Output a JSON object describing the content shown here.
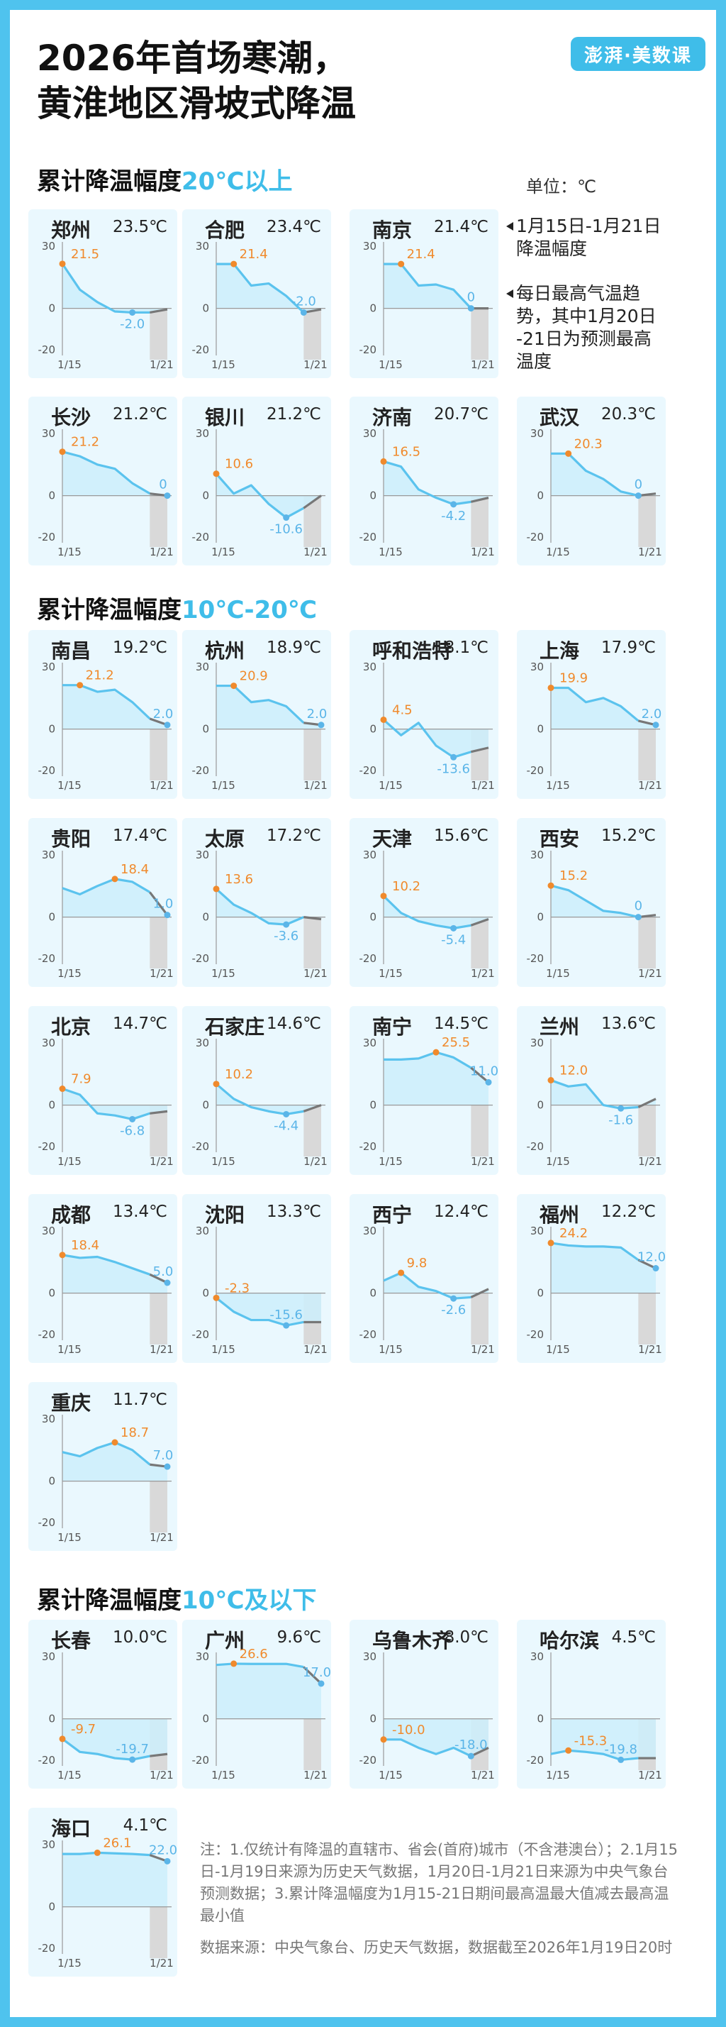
{
  "title_line1": "2026年首场寒潮，",
  "title_line2": "黄淮地区滑坡式降温",
  "logo": "澎湃·美数课",
  "unit": "单位：℃",
  "legend": {
    "range": [
      "1月15日-1月21日",
      "降温幅度"
    ],
    "trend": [
      "每日最高气温趋",
      "势，其中1月20日",
      "-21日为预测最高",
      "温度"
    ]
  },
  "sections": [
    {
      "prefix": "累计降温幅度",
      "highlight": "20℃以上"
    },
    {
      "prefix": "累计降温幅度",
      "highlight": "10℃-20℃"
    },
    {
      "prefix": "累计降温幅度",
      "highlight": "10℃及以下"
    }
  ],
  "axis": {
    "ticks": [
      "30",
      "0",
      "-20"
    ],
    "x_start": "1/15",
    "x_end": "1/21",
    "ylim": [
      -20,
      30
    ]
  },
  "colors": {
    "line": "#5bc3ee",
    "forecast": "#777777",
    "max": "#f08a2c",
    "min": "#5bb5e8",
    "area": "#cdeefb",
    "shade": "#d9d9d9"
  },
  "chart_data": {
    "type": "line",
    "x": [
      "1/15",
      "1/16",
      "1/17",
      "1/18",
      "1/19",
      "1/20",
      "1/21"
    ],
    "description_note": "每日最高气温趋势，1月20日-21日为预测",
    "cities": [
      {
        "name": "郑州",
        "drop": "23.5℃",
        "max": 21.5,
        "min": -2.0,
        "max_label": "21.5",
        "min_label": "-2.0",
        "values": [
          21.5,
          9,
          3,
          -1.5,
          -2.0,
          -2.0,
          -0.5
        ],
        "max_i": 0,
        "min_i": 4
      },
      {
        "name": "合肥",
        "drop": "23.4℃",
        "max": 21.4,
        "min": -2.0,
        "max_label": "21.4",
        "min_label": "-2.0",
        "values": [
          21.4,
          21.4,
          11,
          12,
          6,
          -2.0,
          -0.5
        ],
        "max_i": 1,
        "min_i": 5
      },
      {
        "name": "南京",
        "drop": "21.4℃",
        "max": 21.4,
        "min": 0,
        "max_label": "21.4",
        "min_label": "0",
        "values": [
          21.4,
          21.4,
          11,
          11.5,
          9,
          0,
          0
        ],
        "max_i": 1,
        "min_i": 5
      },
      {
        "name": "长沙",
        "drop": "21.2℃",
        "max": 21.2,
        "min": 0,
        "max_label": "21.2",
        "min_label": "0",
        "values": [
          21.2,
          19,
          15,
          13,
          6,
          1,
          0
        ],
        "max_i": 0,
        "min_i": 6
      },
      {
        "name": "银川",
        "drop": "21.2℃",
        "max": 10.6,
        "min": -10.6,
        "max_label": "10.6",
        "min_label": "-10.6",
        "values": [
          10.6,
          1,
          5,
          -4,
          -10.6,
          -6,
          0
        ],
        "max_i": 0,
        "min_i": 4
      },
      {
        "name": "济南",
        "drop": "20.7℃",
        "max": 16.5,
        "min": -4.2,
        "max_label": "16.5",
        "min_label": "-4.2",
        "values": [
          16.5,
          14,
          3,
          -1,
          -4.2,
          -3,
          -1
        ],
        "max_i": 0,
        "min_i": 4
      },
      {
        "name": "武汉",
        "drop": "20.3℃",
        "max": 20.3,
        "min": 0,
        "max_label": "20.3",
        "min_label": "0",
        "values": [
          20.3,
          20.3,
          12,
          8,
          2,
          0,
          1
        ],
        "max_i": 1,
        "min_i": 5
      },
      {
        "name": "南昌",
        "drop": "19.2℃",
        "max": 21.2,
        "min": 2.0,
        "max_label": "21.2",
        "min_label": "2.0",
        "values": [
          21.2,
          21.2,
          18,
          19,
          13,
          5,
          2.0
        ],
        "max_i": 1,
        "min_i": 6
      },
      {
        "name": "杭州",
        "drop": "18.9℃",
        "max": 20.9,
        "min": 2.0,
        "max_label": "20.9",
        "min_label": "2.0",
        "values": [
          20.9,
          20.9,
          13,
          14,
          11,
          3,
          2.0
        ],
        "max_i": 1,
        "min_i": 6
      },
      {
        "name": "呼和浩特",
        "drop": "18.1℃",
        "max": 4.5,
        "min": -13.6,
        "max_label": "4.5",
        "min_label": "-13.6",
        "values": [
          4.5,
          -3,
          3,
          -8,
          -13.6,
          -11,
          -9
        ],
        "max_i": 0,
        "min_i": 4
      },
      {
        "name": "上海",
        "drop": "17.9℃",
        "max": 19.9,
        "min": 2.0,
        "max_label": "19.9",
        "min_label": "2.0",
        "values": [
          19.9,
          19.9,
          13,
          15,
          11,
          4,
          2.0
        ],
        "max_i": 0,
        "min_i": 6
      },
      {
        "name": "贵阳",
        "drop": "17.4℃",
        "max": 18.4,
        "min": 1.0,
        "max_label": "18.4",
        "min_label": "1.0",
        "values": [
          14,
          11,
          15,
          18.4,
          17,
          12,
          1.0
        ],
        "max_i": 3,
        "min_i": 6
      },
      {
        "name": "太原",
        "drop": "17.2℃",
        "max": 13.6,
        "min": -3.6,
        "max_label": "13.6",
        "min_label": "-3.6",
        "values": [
          13.6,
          6,
          2,
          -3,
          -3.6,
          0,
          -1
        ],
        "max_i": 0,
        "min_i": 4
      },
      {
        "name": "天津",
        "drop": "15.6℃",
        "max": 10.2,
        "min": -5.4,
        "max_label": "10.2",
        "min_label": "-5.4",
        "values": [
          10.2,
          2,
          -2,
          -4,
          -5.4,
          -4,
          -1
        ],
        "max_i": 0,
        "min_i": 4
      },
      {
        "name": "西安",
        "drop": "15.2℃",
        "max": 15.2,
        "min": 0,
        "max_label": "15.2",
        "min_label": "0",
        "values": [
          15.2,
          13,
          8,
          3,
          2,
          0,
          1
        ],
        "max_i": 0,
        "min_i": 5
      },
      {
        "name": "北京",
        "drop": "14.7℃",
        "max": 7.9,
        "min": -6.8,
        "max_label": "7.9",
        "min_label": "-6.8",
        "values": [
          7.9,
          5,
          -4,
          -5,
          -6.8,
          -4,
          -3
        ],
        "max_i": 0,
        "min_i": 4
      },
      {
        "name": "石家庄",
        "drop": "14.6℃",
        "max": 10.2,
        "min": -4.4,
        "max_label": "10.2",
        "min_label": "-4.4",
        "values": [
          10.2,
          3,
          -1,
          -3,
          -4.4,
          -3,
          0
        ],
        "max_i": 0,
        "min_i": 4
      },
      {
        "name": "南宁",
        "drop": "14.5℃",
        "max": 25.5,
        "min": 11.0,
        "max_label": "25.5",
        "min_label": "11.0",
        "values": [
          22,
          22,
          22.5,
          25.5,
          23,
          18,
          11.0
        ],
        "max_i": 3,
        "min_i": 6
      },
      {
        "name": "兰州",
        "drop": "13.6℃",
        "max": 12.0,
        "min": -1.6,
        "max_label": "12.0",
        "min_label": "-1.6",
        "values": [
          12.0,
          9,
          10,
          0,
          -1.6,
          -1,
          3
        ],
        "max_i": 0,
        "min_i": 4
      },
      {
        "name": "成都",
        "drop": "13.4℃",
        "max": 18.4,
        "min": 5.0,
        "max_label": "18.4",
        "min_label": "5.0",
        "values": [
          18.4,
          17,
          17.5,
          15,
          12,
          9,
          5.0
        ],
        "max_i": 0,
        "min_i": 6
      },
      {
        "name": "沈阳",
        "drop": "13.3℃",
        "max": -2.3,
        "min": -15.6,
        "max_label": "-2.3",
        "min_label": "-15.6",
        "values": [
          -2.3,
          -9,
          -13,
          -13,
          -15.6,
          -14,
          -14
        ],
        "max_i": 0,
        "min_i": 4
      },
      {
        "name": "西宁",
        "drop": "12.4℃",
        "max": 9.8,
        "min": -2.6,
        "max_label": "9.8",
        "min_label": "-2.6",
        "values": [
          6,
          9.8,
          3,
          1,
          -2.6,
          -2,
          2
        ],
        "max_i": 1,
        "min_i": 4
      },
      {
        "name": "福州",
        "drop": "12.2℃",
        "max": 24.2,
        "min": 12.0,
        "max_label": "24.2",
        "min_label": "12.0",
        "values": [
          24.2,
          23,
          22.5,
          22.5,
          22,
          16,
          12.0
        ],
        "max_i": 0,
        "min_i": 6
      },
      {
        "name": "重庆",
        "drop": "11.7℃",
        "max": 18.7,
        "min": 7.0,
        "max_label": "18.7",
        "min_label": "7.0",
        "values": [
          14,
          12,
          16,
          18.7,
          15,
          8,
          7.0
        ],
        "max_i": 3,
        "min_i": 6
      },
      {
        "name": "长春",
        "drop": "10.0℃",
        "max": -9.7,
        "min": -19.7,
        "max_label": "-9.7",
        "min_label": "-19.7",
        "values": [
          -9.7,
          -16,
          -17,
          -19,
          -19.7,
          -18,
          -17
        ],
        "max_i": 0,
        "min_i": 4
      },
      {
        "name": "广州",
        "drop": "9.6℃",
        "max": 26.6,
        "min": 17.0,
        "max_label": "26.6",
        "min_label": "17.0",
        "values": [
          26,
          26.6,
          26.5,
          26.5,
          26.5,
          25,
          17.0
        ],
        "max_i": 1,
        "min_i": 6
      },
      {
        "name": "乌鲁木齐",
        "drop": "8.0℃",
        "max": -10.0,
        "min": -18.0,
        "max_label": "-10.0",
        "min_label": "-18.0",
        "values": [
          -10.0,
          -10,
          -14,
          -17,
          -14,
          -18.0,
          -14
        ],
        "max_i": 0,
        "min_i": 5
      },
      {
        "name": "哈尔滨",
        "drop": "4.5℃",
        "max": -15.3,
        "min": -19.8,
        "max_label": "-15.3",
        "min_label": "-19.8",
        "values": [
          -17,
          -15.3,
          -16,
          -17,
          -19.8,
          -19,
          -19
        ],
        "max_i": 1,
        "min_i": 4
      },
      {
        "name": "海口",
        "drop": "4.1℃",
        "max": 26.1,
        "min": 22.0,
        "max_label": "26.1",
        "min_label": "22.0",
        "values": [
          25.5,
          25.5,
          26.1,
          25.8,
          25.5,
          25,
          22.0
        ],
        "max_i": 2,
        "min_i": 6
      }
    ]
  },
  "note": "注：1.仅统计有降温的直辖市、省会(首府)城市（不含港澳台）；2.1月15日-1月19日来源为历史天气数据，1月20日-1月21日来源为中央气象台预测数据；3.累计降温幅度为1月15-21日期间最高温最大值减去最高温最小值",
  "source": "数据来源：中央气象台、历史天气数据，数据截至2026年1月19日20时"
}
